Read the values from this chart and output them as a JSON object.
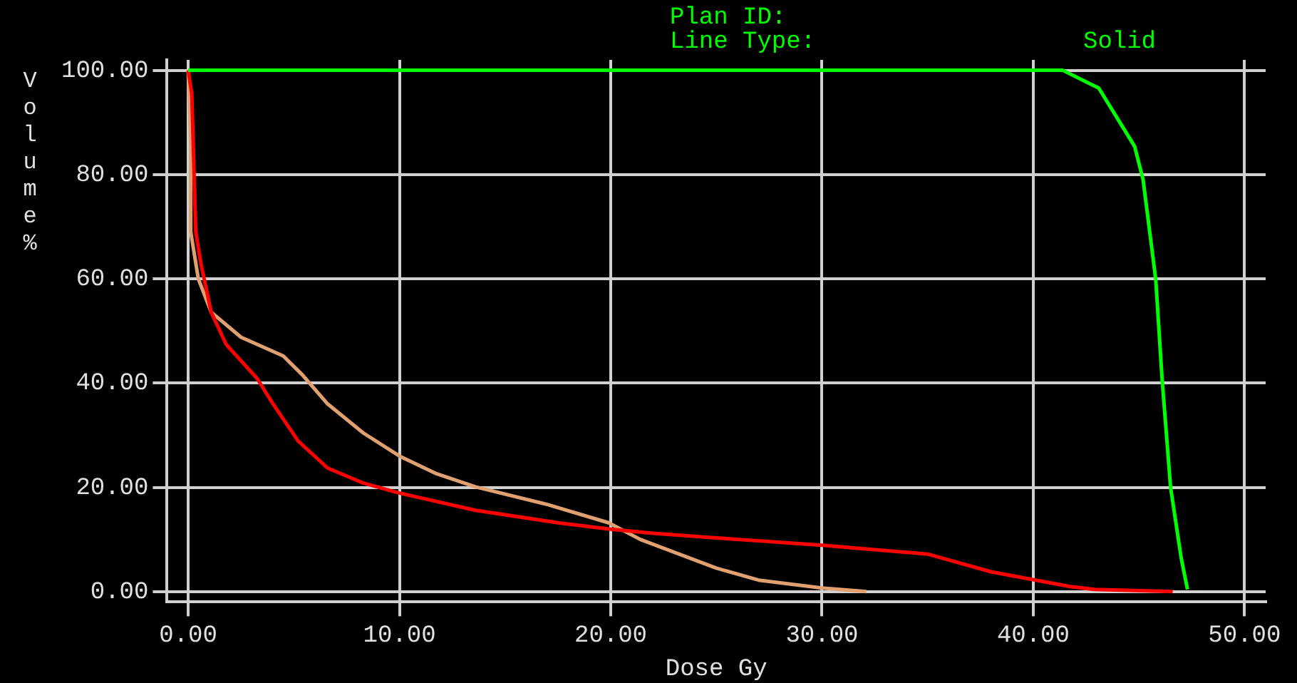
{
  "chart_data": {
    "type": "line",
    "xlabel": "Dose Gy",
    "ylabel": "Volume %",
    "annotations": [
      "Plan ID:",
      "Line Type:",
      "Solid"
    ],
    "xlim": [
      -1,
      51
    ],
    "ylim": [
      -2,
      102
    ],
    "xticks": [
      {
        "value": 0,
        "label": "0.00"
      },
      {
        "value": 10,
        "label": "10.00"
      },
      {
        "value": 20,
        "label": "20.00"
      },
      {
        "value": 30,
        "label": "30.00"
      },
      {
        "value": 40,
        "label": "40.00"
      },
      {
        "value": 50,
        "label": "50.00"
      }
    ],
    "yticks": [
      {
        "value": 0,
        "label": "0.00"
      },
      {
        "value": 20,
        "label": "20.00"
      },
      {
        "value": 40,
        "label": "40.00"
      },
      {
        "value": 60,
        "label": "60.00"
      },
      {
        "value": 80,
        "label": "80.00"
      },
      {
        "value": 100,
        "label": "100.00"
      }
    ],
    "grid": true,
    "legend": false,
    "marker": "none",
    "line_style": "solid",
    "series": [
      {
        "color": "#00ff00",
        "x": [
          0,
          10,
          20,
          30,
          41.4,
          43.1,
          44.8,
          45.2,
          45.8,
          46.1,
          46.5,
          47,
          47.3
        ],
        "values": [
          100,
          100,
          100,
          100,
          100,
          96.6,
          85.4,
          79,
          59.8,
          40.7,
          20,
          6.5,
          0.4
        ]
      },
      {
        "color": "#ff0000",
        "x": [
          0,
          0.17,
          0.36,
          0.6,
          1.09,
          1.8,
          3.26,
          4,
          5.2,
          6.6,
          8.3,
          10,
          13.6,
          17.5,
          19.9,
          22,
          25,
          30,
          35,
          38,
          41.7,
          42.9,
          46.6
        ],
        "values": [
          100,
          95.5,
          69,
          63,
          53.6,
          47.4,
          40.9,
          36.1,
          28.9,
          23.7,
          20.8,
          18.9,
          15.6,
          13.2,
          12,
          11.2,
          10.3,
          8.9,
          7.2,
          3.8,
          1,
          0.4,
          0
        ]
      },
      {
        "color": "#e0a070",
        "x": [
          0,
          0.12,
          0.12,
          0.48,
          1.09,
          2.5,
          4.5,
          5.4,
          6.6,
          8.3,
          10,
          11.7,
          13.6,
          17,
          19.9,
          21.4,
          25,
          27,
          30,
          32.1
        ],
        "values": [
          100,
          86,
          69,
          60,
          53.6,
          48.8,
          45.2,
          41.6,
          36,
          30.4,
          26,
          22.7,
          20.1,
          16.7,
          13.2,
          10,
          4.5,
          2.2,
          0.7,
          0
        ]
      }
    ]
  }
}
